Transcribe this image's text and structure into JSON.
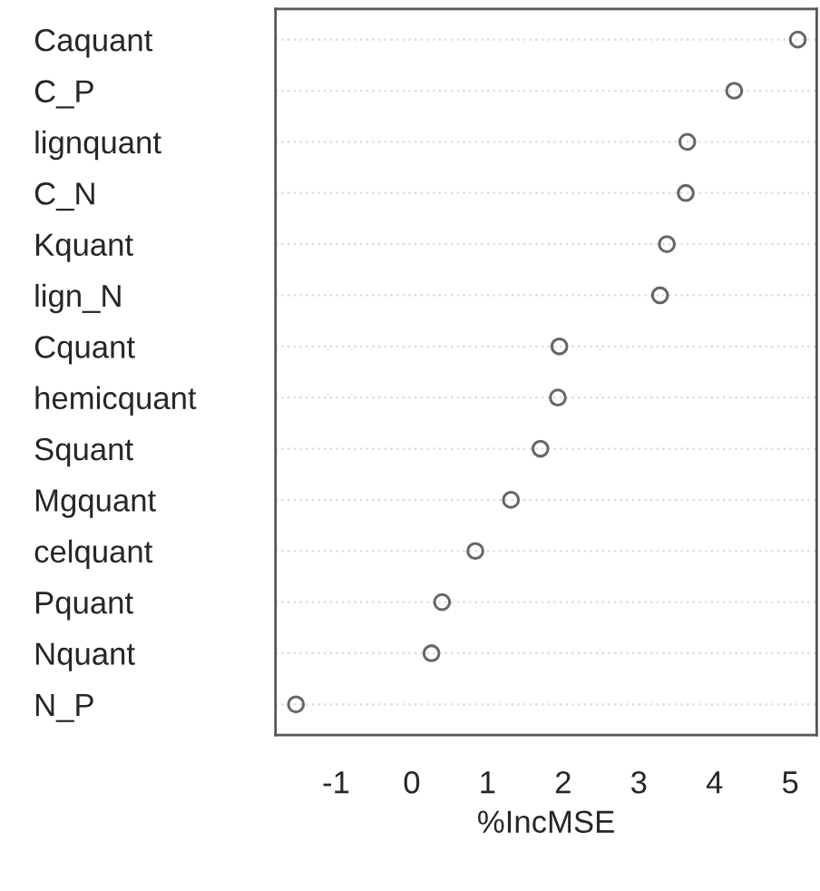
{
  "chart_data": {
    "type": "scatter",
    "orientation": "horizontal",
    "xlabel": "%IncMSE",
    "categories": [
      "Caquant",
      "C_P",
      "lignquant",
      "C_N",
      "Kquant",
      "lign_N",
      "Cquant",
      "hemicquant",
      "Squant",
      "Mgquant",
      "celquant",
      "Pquant",
      "Nquant",
      "N_P"
    ],
    "values": [
      5.1,
      4.26,
      3.64,
      3.62,
      3.37,
      3.28,
      1.95,
      1.93,
      1.7,
      1.31,
      0.84,
      0.4,
      0.26,
      -1.53
    ],
    "color": "#666666",
    "marker": "circle",
    "grid": "y",
    "xlim": [
      -1.8,
      5.35
    ],
    "xticks": [
      -1,
      0,
      1,
      2,
      3,
      4,
      5
    ]
  }
}
